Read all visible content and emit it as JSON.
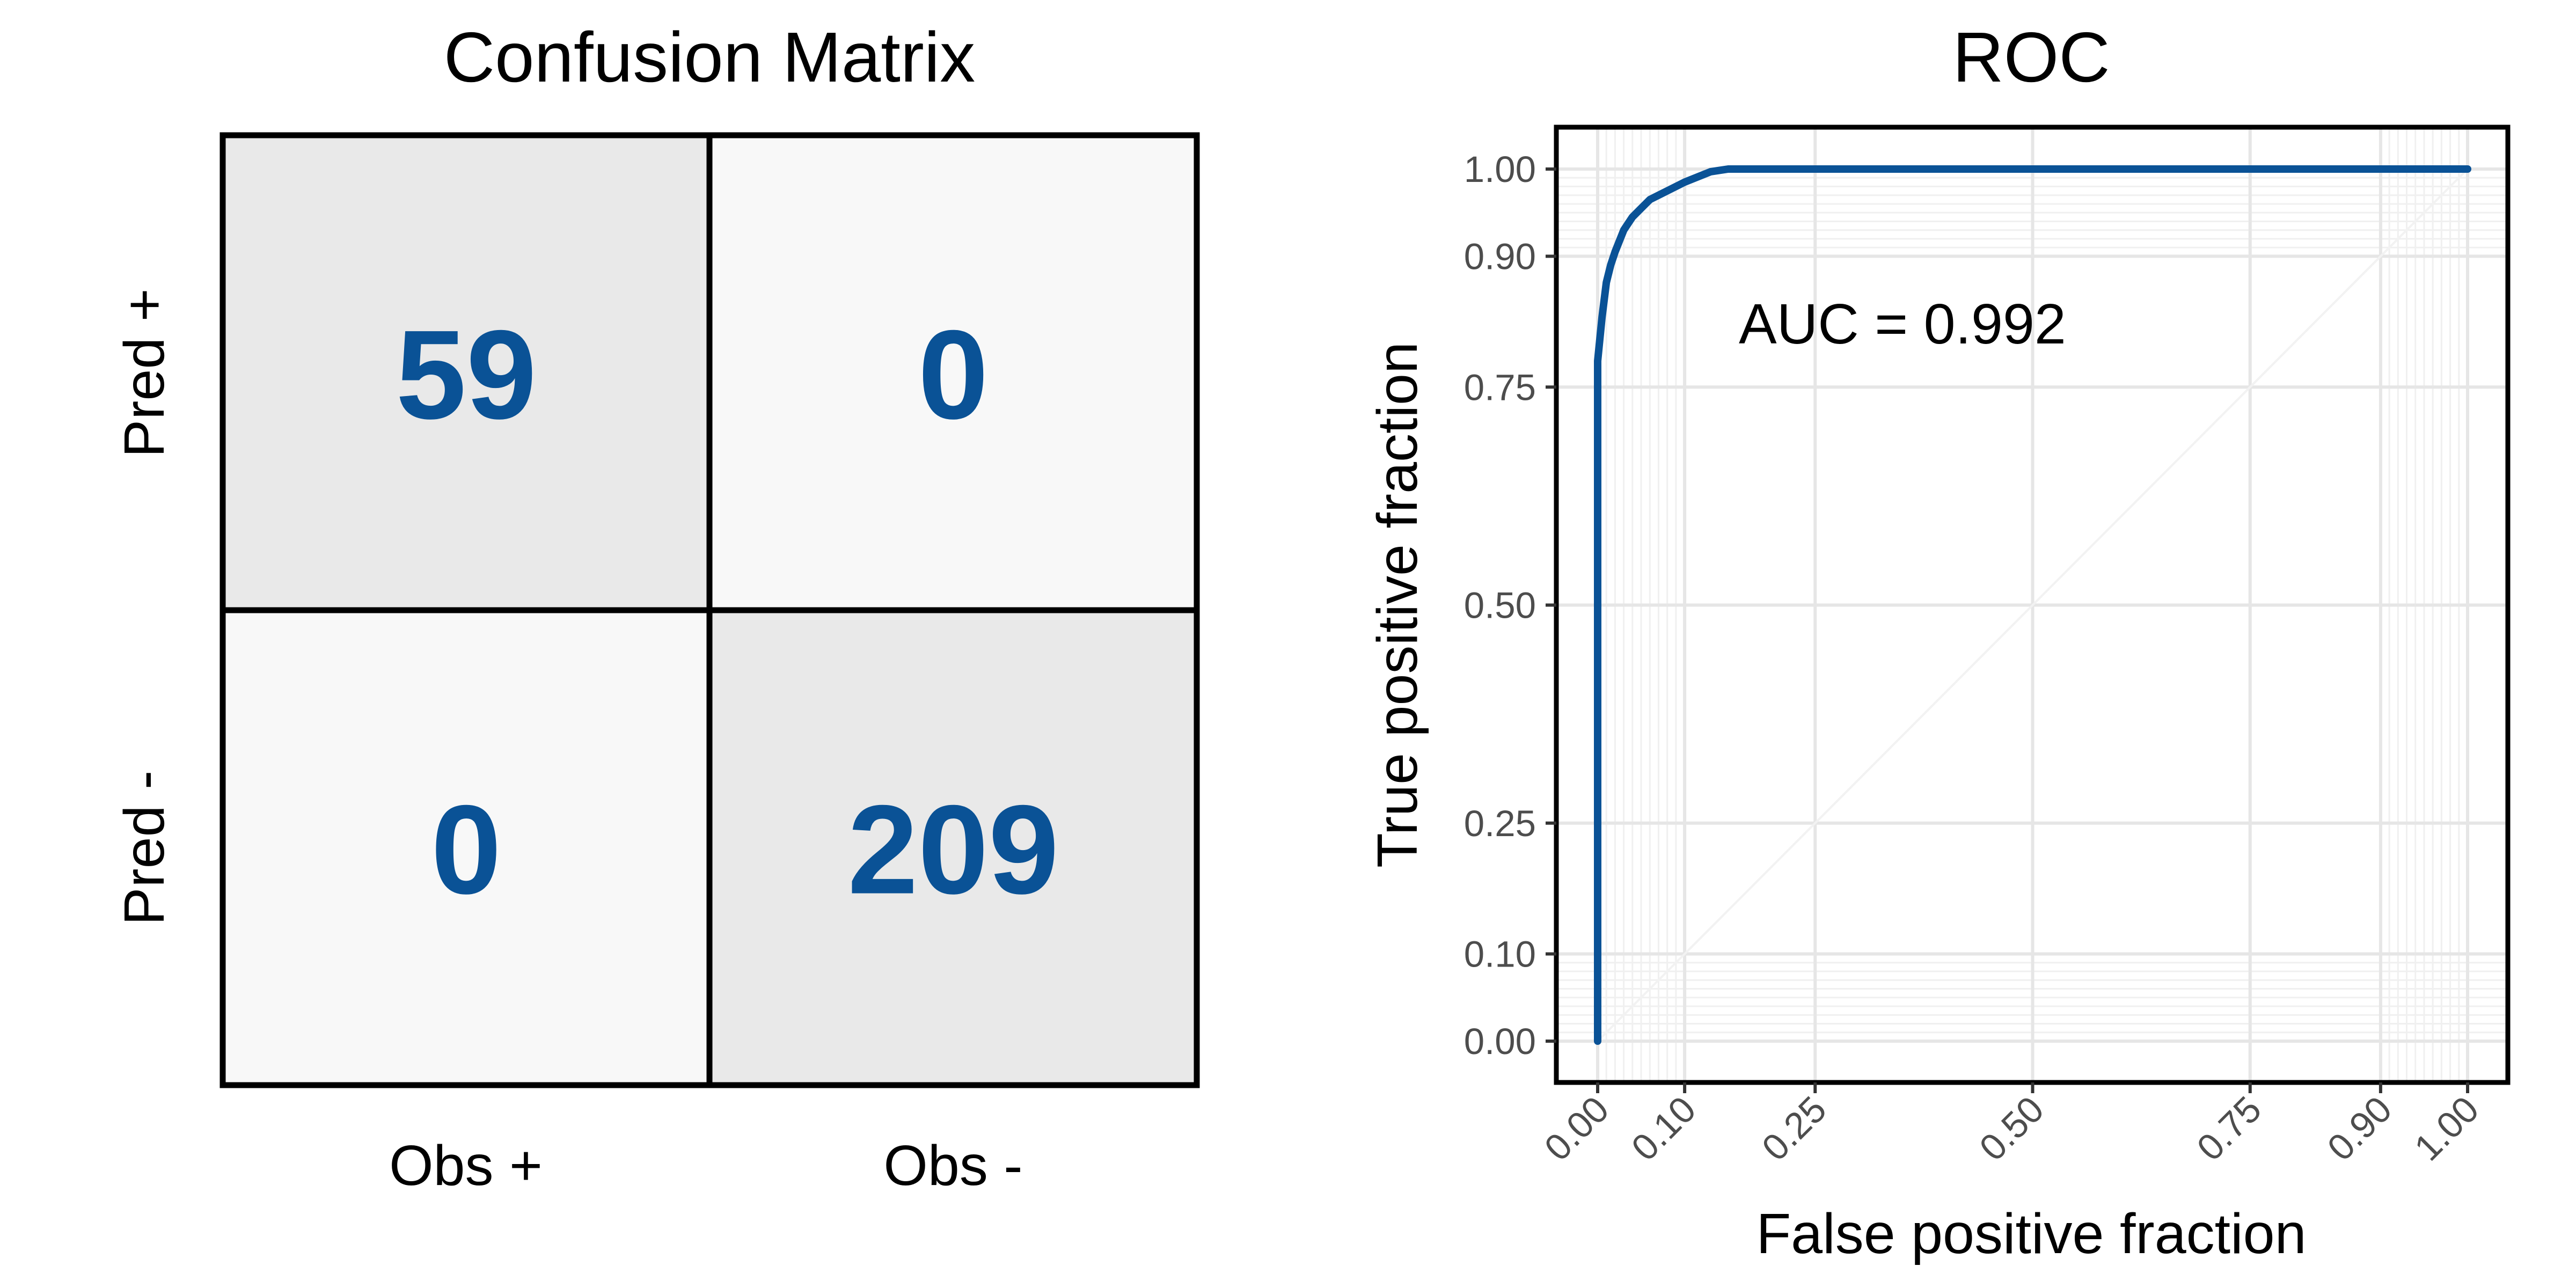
{
  "chart_data": [
    {
      "type": "heatmap",
      "title": "Confusion Matrix",
      "row_labels": [
        "Pred +",
        "Pred -"
      ],
      "col_labels": [
        "Obs +",
        "Obs -"
      ],
      "values": [
        [
          59,
          0
        ],
        [
          0,
          209
        ]
      ],
      "cell_shading": [
        [
          "#e9e9e9",
          "#f8f8f8"
        ],
        [
          "#f8f8f8",
          "#e9e9e9"
        ]
      ],
      "value_color": "#0a5296"
    },
    {
      "type": "line",
      "title": "ROC",
      "xlabel": "False positive fraction",
      "ylabel": "True positive fraction",
      "xlim": [
        0,
        1
      ],
      "ylim": [
        0,
        1
      ],
      "xticks": [
        0,
        0.1,
        0.25,
        0.5,
        0.75,
        0.9,
        1
      ],
      "yticks": [
        0,
        0.1,
        0.25,
        0.5,
        0.75,
        0.9,
        1
      ],
      "xtick_labels": [
        "0.00",
        "0.10",
        "0.25",
        "0.50",
        "0.75",
        "0.90",
        "1.00"
      ],
      "ytick_labels": [
        "0.00",
        "0.10",
        "0.25",
        "0.50",
        "0.75",
        "0.90",
        "1.00"
      ],
      "annotation": "AUC = 0.992",
      "line_color": "#0a5296",
      "grid": true,
      "series": [
        {
          "x": [
            0,
            0,
            0.005,
            0.01,
            0.015,
            0.02,
            0.03,
            0.04,
            0.05,
            0.06,
            0.08,
            0.1,
            0.12,
            0.13,
            0.15,
            1.0
          ],
          "y": [
            0,
            0.78,
            0.83,
            0.87,
            0.89,
            0.905,
            0.93,
            0.945,
            0.955,
            0.965,
            0.975,
            0.985,
            0.993,
            0.997,
            1.0,
            1.0
          ]
        }
      ]
    }
  ]
}
